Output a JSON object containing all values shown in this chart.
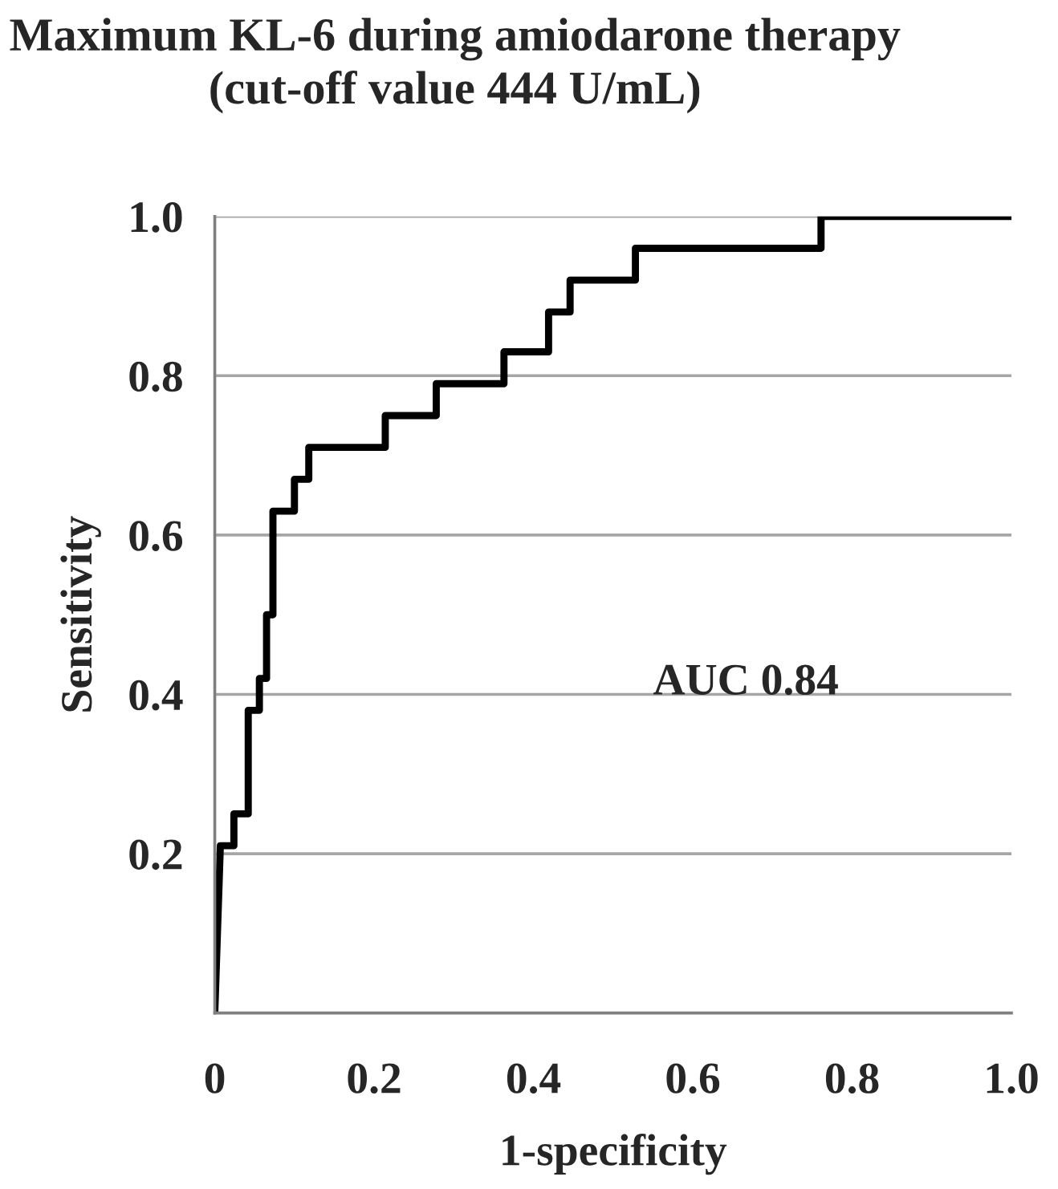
{
  "chart_data": {
    "type": "line",
    "title": "Maximum KL-6 during amiodarone therapy\n(cut-off value 444 U/mL)",
    "xlabel": "1-specificity",
    "ylabel": "Sensitivity",
    "annotations": [
      "AUC 0.84"
    ],
    "series": [
      {
        "color": "#000000",
        "x": [
          0,
          0.007,
          0.024,
          0.024,
          0.042,
          0.042,
          0.056,
          0.056,
          0.065,
          0.065,
          0.073,
          0.073,
          0.1,
          0.1,
          0.118,
          0.118,
          0.214,
          0.214,
          0.278,
          0.278,
          0.363,
          0.363,
          0.419,
          0.419,
          0.446,
          0.446,
          0.528,
          0.528,
          0.761,
          0.761,
          1.0
        ],
        "values": [
          0,
          0.21,
          0.21,
          0.25,
          0.25,
          0.38,
          0.38,
          0.42,
          0.42,
          0.5,
          0.5,
          0.63,
          0.63,
          0.67,
          0.67,
          0.71,
          0.71,
          0.75,
          0.75,
          0.79,
          0.79,
          0.83,
          0.83,
          0.88,
          0.88,
          0.92,
          0.92,
          0.96,
          0.96,
          1.0,
          1.0
        ]
      }
    ],
    "xlim": [
      0,
      1
    ],
    "ylim": [
      0,
      1
    ],
    "xticks": [
      0,
      0.2,
      0.4,
      0.6,
      0.8,
      {
        "value": 1,
        "label": "1.0"
      }
    ],
    "yticks": [
      0.2,
      0.4,
      0.6,
      0.8,
      {
        "value": 1,
        "label": "1.0"
      }
    ],
    "grid": "y",
    "marker": "none",
    "line_style": "solid"
  }
}
